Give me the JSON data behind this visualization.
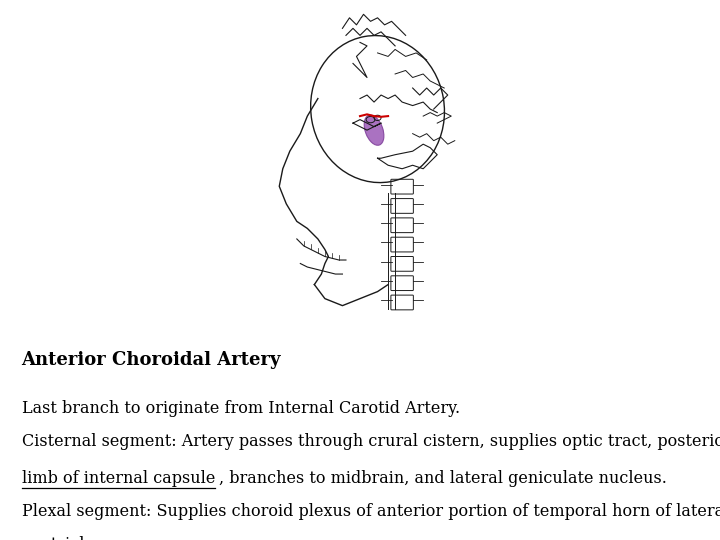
{
  "title": "Anterior Choroidal Artery",
  "title_fontsize": 13,
  "text_fontsize": 11.5,
  "background_color": "#ffffff",
  "text_color": "#000000",
  "line1": "Last branch to originate from Internal Carotid Artery.",
  "line2a": "Cisternal segment: Artery passes through crural cistern, supplies optic tract, posterior",
  "line2b_ul": "limb of internal capsule",
  "line2b_rest": ", branches to midbrain, and lateral geniculate nucleus.",
  "line3a": "Plexal segment: Supplies choroid plexus of anterior portion of temporal horn of lateral",
  "line3b": "ventricles.",
  "skull_color": "#1a1a1a",
  "red_color": "#cc0000",
  "purple_color": "#9b59b6",
  "purple_edge": "#7d3c98"
}
